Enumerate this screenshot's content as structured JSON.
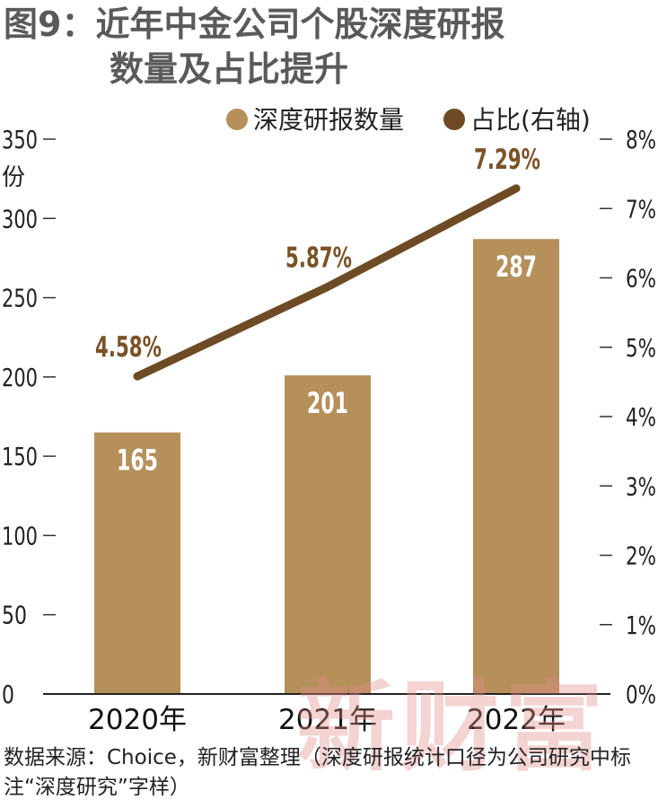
{
  "title": {
    "line1": "图9：近年中金公司个股深度研报",
    "line2": "数量及占比提升"
  },
  "chart_data": {
    "type": "bar",
    "categories": [
      "2020年",
      "2021年",
      "2022年"
    ],
    "series": [
      {
        "name": "深度研报数量",
        "type": "bar",
        "axis": "left",
        "values": [
          165,
          201,
          287
        ],
        "labels": [
          "165",
          "201",
          "287"
        ]
      },
      {
        "name": "占比(右轴)",
        "type": "line",
        "axis": "right",
        "values": [
          4.58,
          5.87,
          7.29
        ],
        "labels": [
          "4.58%",
          "5.87%",
          "7.29%"
        ]
      }
    ],
    "left_axis": {
      "unit": "份",
      "ylim": [
        0,
        350
      ],
      "ticks": [
        "0",
        "50",
        "100",
        "150",
        "200",
        "250",
        "300",
        "350"
      ]
    },
    "right_axis": {
      "ylim": [
        0,
        8
      ],
      "ticks": [
        "0%",
        "1%",
        "2%",
        "3%",
        "4%",
        "5%",
        "6%",
        "7%",
        "8%"
      ]
    },
    "legend": {
      "position": "top-right",
      "items": [
        "深度研报数量",
        "占比(右轴)"
      ]
    },
    "grid": false,
    "colors": {
      "bar": "#b5905a",
      "line": "#6e4b24",
      "bar_label": "#ffffff",
      "line_label": "#7a5226"
    }
  },
  "source": "数据来源：Choice，新财富整理（深度研报统计口径为公司研究中标注“深度研究”字样）",
  "watermark": "新财富"
}
